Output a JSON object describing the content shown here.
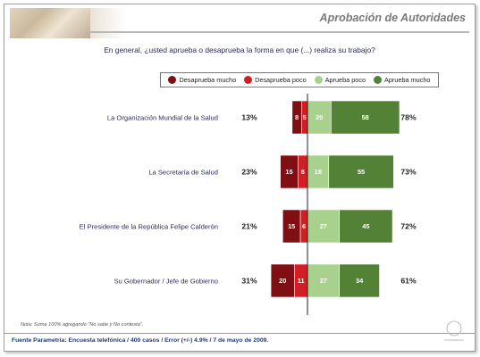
{
  "header": {
    "title": "Aprobación de Autoridades"
  },
  "question": "En general, ¿usted aprueba o desaprueba la forma en que (...) realiza su trabajo?",
  "note": "Nota: Suma 100% agregando \"No sabe y No contesta\".",
  "source": "Fuente Parametría: Encuesta telefónica / 400 casos / Error (+/-) 4.9% / 7 de mayo de 2009.",
  "chart_data": {
    "type": "bar",
    "subtype": "diverging-stacked-horizontal",
    "legend_position": "top-center",
    "series": [
      {
        "name": "Desaprueba mucho",
        "color": "#7f0f12",
        "side": "negative"
      },
      {
        "name": "Desaprueba poco",
        "color": "#d21f26",
        "side": "negative"
      },
      {
        "name": "Aprueba poco",
        "color": "#a9d18e",
        "side": "positive"
      },
      {
        "name": "Aprueba mucho",
        "color": "#538135",
        "side": "positive"
      }
    ],
    "categories": [
      "La Organización Mundial de la Salud",
      "La Secretaría de Salud",
      "El Presidente de la República Felipe Calderón",
      "Su Gobernador / Jefe de Gobierno"
    ],
    "values": [
      [
        8,
        5,
        20,
        58
      ],
      [
        15,
        8,
        18,
        55
      ],
      [
        15,
        6,
        27,
        45
      ],
      [
        20,
        11,
        27,
        34
      ]
    ],
    "disapprove_totals": [
      "13%",
      "23%",
      "21%",
      "31%"
    ],
    "approve_totals": [
      "78%",
      "73%",
      "72%",
      "61%"
    ]
  }
}
